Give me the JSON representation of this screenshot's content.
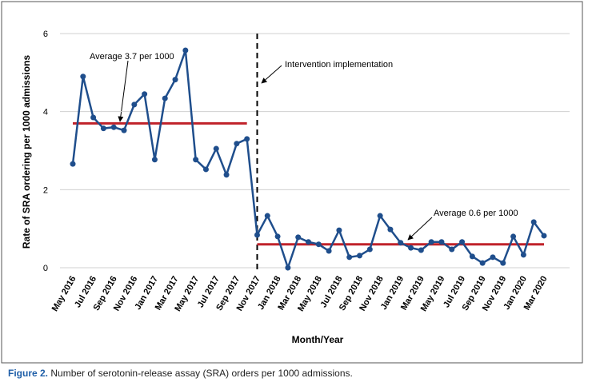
{
  "chart_data": {
    "type": "line",
    "y_label": "Rate of SRA ordering per 1000 admissions",
    "x_label": "Month/Year",
    "categories": [
      "May 2016",
      null,
      "Jul 2016",
      null,
      "Sep 2016",
      null,
      "Nov 2016",
      null,
      "Jan 2017",
      null,
      "Mar 2017",
      null,
      "May 2017",
      null,
      "Jul 2017",
      null,
      "Sep 2017",
      null,
      "Nov 2017",
      null,
      "Jan 2018",
      null,
      "Mar 2018",
      null,
      "May 2018",
      null,
      "Jul 2018",
      null,
      "Sep 2018",
      null,
      "Nov 2018",
      null,
      "Jan 2019",
      null,
      "Mar 2019",
      null,
      "May 2019",
      null,
      "Jul 2019",
      null,
      "Sep 2019",
      null,
      "Nov 2019",
      null,
      "Jan 2020",
      null,
      "Mar 2020"
    ],
    "series": [
      {
        "color": "#1f4e8c",
        "values": [
          2.66,
          4.9,
          3.85,
          3.57,
          3.6,
          3.52,
          4.18,
          4.45,
          2.77,
          4.34,
          4.82,
          5.57,
          2.77,
          2.52,
          3.05,
          2.38,
          3.18,
          3.3,
          0.84,
          1.33,
          0.8,
          0,
          0.78,
          0.66,
          0.6,
          0.43,
          0.96,
          0.27,
          0.31,
          0.47,
          1.33,
          0.98,
          0.64,
          0.51,
          0.45,
          0.66,
          0.66,
          0.47,
          0.66,
          0.29,
          0.12,
          0.27,
          0.12,
          0.8,
          0.33,
          1.17,
          0.82
        ]
      }
    ],
    "ylim": [
      0,
      6
    ],
    "yticks": [
      0,
      2,
      4,
      6
    ],
    "grid": true,
    "intervention": {
      "label": "Intervention implementation",
      "at": "Nov 2017"
    },
    "averages": [
      {
        "label": "Average 3.7 per 1000",
        "value": 3.7,
        "color": "#c0222a"
      },
      {
        "label": "Average 0.6 per 1000",
        "value": 0.6,
        "color": "#c0222a"
      }
    ]
  },
  "caption": {
    "label": "Figure 2.",
    "text": "Number of serotonin-release assay (SRA) orders per 1000 admissions."
  }
}
